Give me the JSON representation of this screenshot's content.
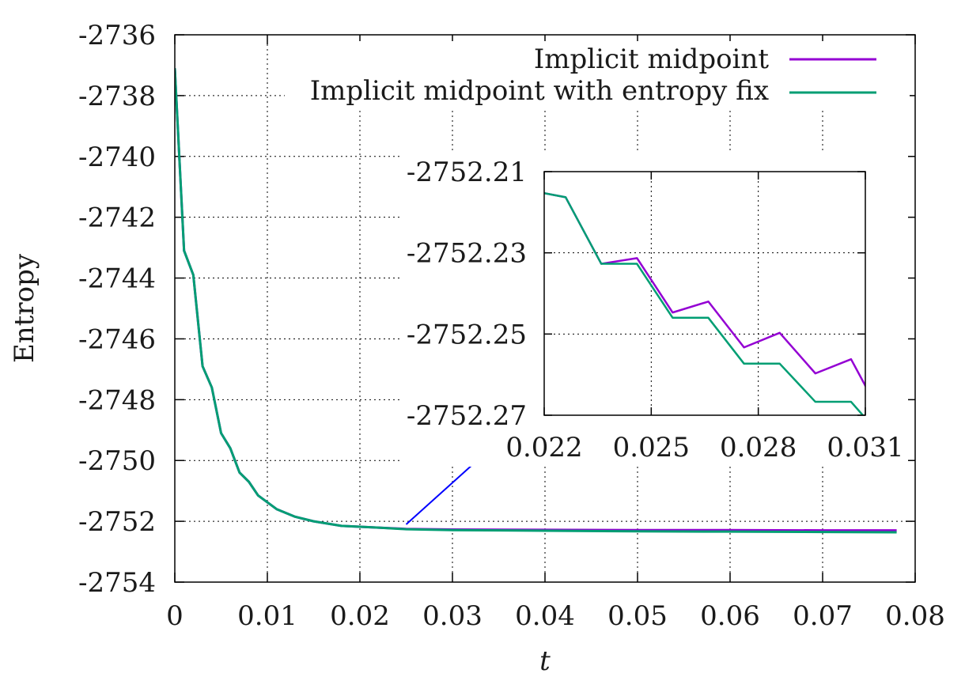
{
  "chart_data": [
    {
      "type": "line",
      "xlabel": "t",
      "ylabel": "Entropy",
      "xlim": [
        0,
        0.08
      ],
      "ylim": [
        -2754,
        -2736
      ],
      "xticks": [
        0,
        0.01,
        0.02,
        0.03,
        0.04,
        0.05,
        0.06,
        0.07,
        0.08
      ],
      "xtick_labels": [
        "0",
        "0.01",
        "0.02",
        "0.03",
        "0.04",
        "0.05",
        "0.06",
        "0.07",
        "0.08"
      ],
      "yticks": [
        -2754,
        -2752,
        -2750,
        -2748,
        -2746,
        -2744,
        -2742,
        -2740,
        -2738,
        -2736
      ],
      "ytick_labels": [
        "-2754",
        "-2752",
        "-2750",
        "-2748",
        "-2746",
        "-2744",
        "-2742",
        "-2740",
        "-2738",
        "-2736"
      ],
      "grid": true,
      "legend_position": "top-right",
      "series": [
        {
          "name": "Implicit midpoint",
          "color": "#9400d3",
          "x": [
            0,
            0.001,
            0.002,
            0.003,
            0.004,
            0.005,
            0.006,
            0.007,
            0.008,
            0.009,
            0.011,
            0.013,
            0.015,
            0.018,
            0.022,
            0.025,
            0.03,
            0.04,
            0.05,
            0.06,
            0.07,
            0.078
          ],
          "y": [
            -2737.1,
            -2743.1,
            -2743.9,
            -2746.9,
            -2747.6,
            -2749.1,
            -2749.6,
            -2750.4,
            -2750.7,
            -2751.15,
            -2751.6,
            -2751.85,
            -2752.0,
            -2752.15,
            -2752.21,
            -2752.25,
            -2752.27,
            -2752.28,
            -2752.29,
            -2752.29,
            -2752.3,
            -2752.3
          ]
        },
        {
          "name": "Implicit midpoint with entropy fix",
          "color": "#009e73",
          "x": [
            0,
            0.001,
            0.002,
            0.003,
            0.004,
            0.005,
            0.006,
            0.007,
            0.008,
            0.009,
            0.011,
            0.013,
            0.015,
            0.018,
            0.022,
            0.025,
            0.03,
            0.04,
            0.05,
            0.06,
            0.07,
            0.078
          ],
          "y": [
            -2737.1,
            -2743.1,
            -2743.9,
            -2746.9,
            -2747.6,
            -2749.1,
            -2749.6,
            -2750.4,
            -2750.7,
            -2751.15,
            -2751.6,
            -2751.85,
            -2752.0,
            -2752.15,
            -2752.21,
            -2752.26,
            -2752.29,
            -2752.31,
            -2752.33,
            -2752.34,
            -2752.35,
            -2752.36
          ]
        }
      ],
      "annotation": {
        "type": "arrow",
        "color": "#0000ff",
        "from": [
          0.025,
          -2752.1
        ],
        "to": [
          0.0345,
          -2749.5
        ]
      }
    },
    {
      "type": "line",
      "role": "inset",
      "xlim": [
        0.022,
        0.031
      ],
      "ylim": [
        -2752.27,
        -2752.21
      ],
      "xticks": [
        0.022,
        0.025,
        0.028,
        0.031
      ],
      "xtick_labels": [
        "0.022",
        "0.025",
        "0.028",
        "0.031"
      ],
      "yticks": [
        -2752.27,
        -2752.25,
        -2752.23,
        -2752.21
      ],
      "ytick_labels": [
        "-2752.27",
        "-2752.25",
        "-2752.23",
        "-2752.21"
      ],
      "grid": true,
      "series": [
        {
          "name": "Implicit midpoint",
          "color": "#9400d3",
          "x": [
            0.022,
            0.0226,
            0.0236,
            0.0246,
            0.0256,
            0.0266,
            0.0276,
            0.0286,
            0.0296,
            0.0306,
            0.0312
          ],
          "y": [
            -2752.2153,
            -2752.2163,
            -2752.2327,
            -2752.2313,
            -2752.2447,
            -2752.242,
            -2752.2533,
            -2752.2497,
            -2752.2597,
            -2752.2562,
            -2752.266
          ]
        },
        {
          "name": "Implicit midpoint with entropy fix",
          "color": "#009e73",
          "x": [
            0.022,
            0.0226,
            0.0236,
            0.0246,
            0.0256,
            0.0266,
            0.0276,
            0.0286,
            0.0296,
            0.0306,
            0.0312
          ],
          "y": [
            -2752.2153,
            -2752.2163,
            -2752.2327,
            -2752.2327,
            -2752.246,
            -2752.246,
            -2752.2573,
            -2752.2573,
            -2752.2667,
            -2752.2667,
            -2752.2727
          ]
        }
      ]
    }
  ]
}
